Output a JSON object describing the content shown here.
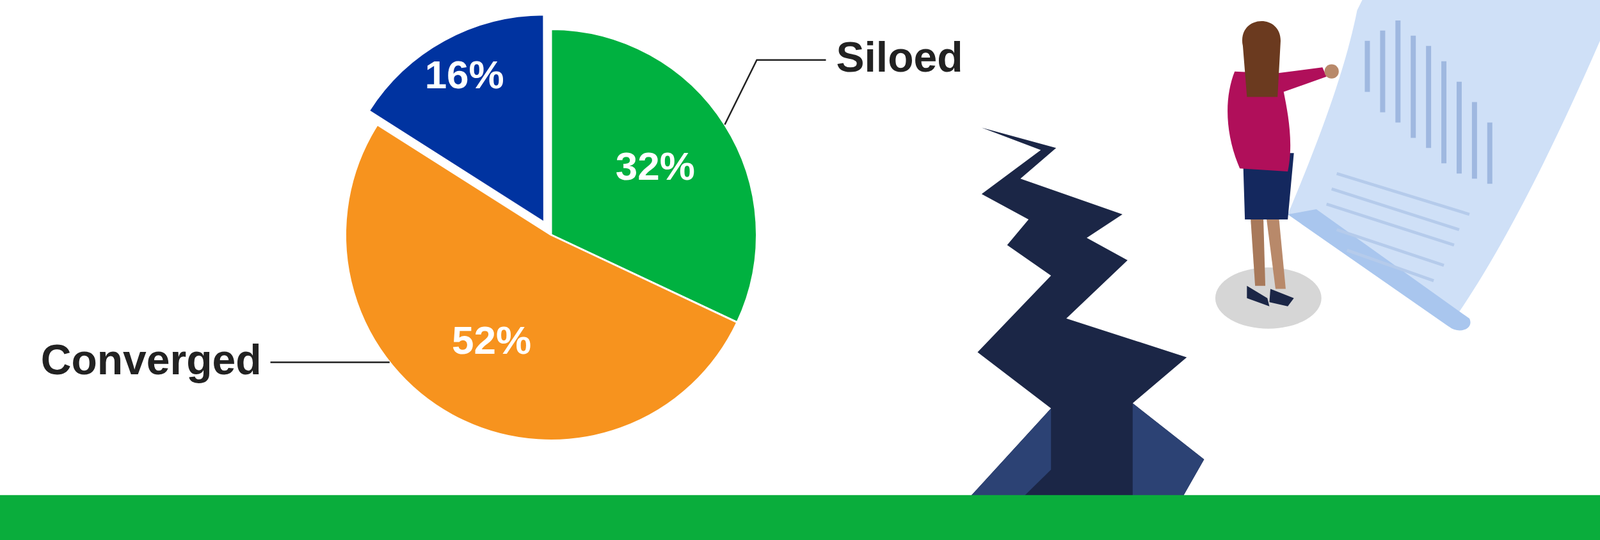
{
  "chart_data": {
    "type": "pie",
    "categories": [
      "Siloed",
      "Converged",
      null
    ],
    "values": [
      32,
      52,
      16
    ],
    "value_labels": [
      "32%",
      "52%",
      "16%"
    ],
    "colors": [
      "#00b140",
      "#f7931e",
      "#0033a0"
    ],
    "data_labels": true
  }
}
